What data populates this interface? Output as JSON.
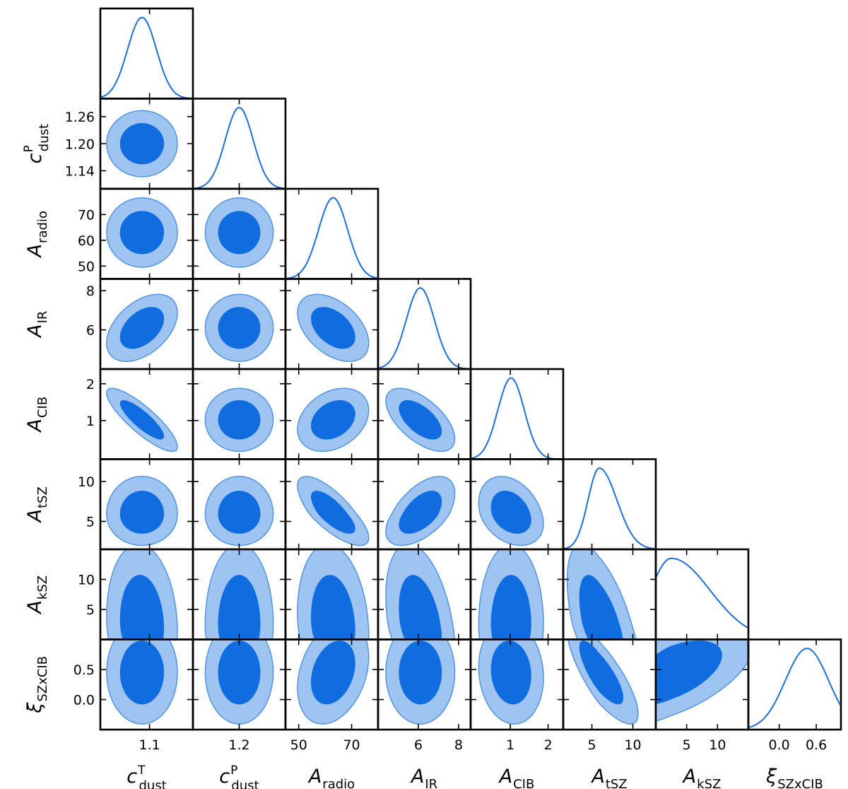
{
  "chart_data": {
    "type": "corner",
    "title": "",
    "colors": {
      "inner": "#0f6de0",
      "outer": "#9fc4f1",
      "outer_edge": "#4a90e0",
      "line": "#1f6fd8"
    },
    "parameters": [
      {
        "id": "c_dust_T",
        "label_main": "c",
        "label_sub": "dust",
        "label_sup": "T",
        "symbol": "",
        "range": [
          1.015,
          1.175
        ],
        "mean": 1.087,
        "sigma": 0.025,
        "skew": 0,
        "ticks": [
          1.1
        ],
        "tick_labels": [
          "1.1"
        ],
        "y_ticks": [],
        "y_tick_labels": []
      },
      {
        "id": "c_dust_P",
        "label_main": "c",
        "label_sub": "dust",
        "label_sup": "P",
        "symbol": "",
        "range": [
          1.1,
          1.3
        ],
        "mean": 1.2,
        "sigma": 0.03,
        "skew": 0,
        "ticks": [
          1.2
        ],
        "tick_labels": [
          "1.2"
        ],
        "y_ticks": [
          1.26,
          1.2,
          1.14
        ],
        "y_tick_labels": [
          "1.26",
          "1.20",
          "1.14"
        ]
      },
      {
        "id": "A_radio",
        "label_main": "A",
        "label_sub": "radio",
        "label_sup": "",
        "symbol": "",
        "range": [
          45,
          80
        ],
        "mean": 63,
        "sigma": 5.5,
        "skew": 0,
        "ticks": [
          50,
          70
        ],
        "tick_labels": [
          "50",
          "70"
        ],
        "y_ticks": [
          70,
          60,
          50
        ],
        "y_tick_labels": [
          "70",
          "60",
          "50"
        ]
      },
      {
        "id": "A_IR",
        "label_main": "A",
        "label_sub": "IR",
        "label_sup": "",
        "symbol": "",
        "range": [
          4.0,
          8.6
        ],
        "mean": 6.1,
        "sigma": 0.7,
        "skew": 0,
        "ticks": [
          6,
          8
        ],
        "tick_labels": [
          "6",
          "8"
        ],
        "y_ticks": [
          8,
          6
        ],
        "y_tick_labels": [
          "8",
          "6"
        ]
      },
      {
        "id": "A_CIB",
        "label_main": "A",
        "label_sub": "CIB",
        "label_sup": "",
        "symbol": "",
        "range": [
          -0.05,
          2.4
        ],
        "mean": 1.02,
        "sigma": 0.35,
        "skew": 0,
        "ticks": [
          1,
          2
        ],
        "tick_labels": [
          "1",
          "2"
        ],
        "y_ticks": [
          2,
          1
        ],
        "y_tick_labels": [
          "2",
          "1"
        ]
      },
      {
        "id": "A_tSZ",
        "label_main": "A",
        "label_sub": "tSZ",
        "label_sup": "",
        "symbol": "",
        "range": [
          1.5,
          12.8
        ],
        "mean": 5.9,
        "sigma": 1.6,
        "skew": 0.35,
        "ticks": [
          5,
          10
        ],
        "tick_labels": [
          "5",
          "10"
        ],
        "y_ticks": [
          10,
          5
        ],
        "y_tick_labels": [
          "10",
          "5"
        ]
      },
      {
        "id": "A_kSZ",
        "label_main": "A",
        "label_sub": "kSZ",
        "label_sup": "",
        "symbol": "",
        "range": [
          0,
          15
        ],
        "mean": 2.5,
        "sigma": 4.2,
        "skew": 0.5,
        "ticks": [
          5,
          10
        ],
        "tick_labels": [
          "5",
          "10"
        ],
        "y_ticks": [
          10,
          5
        ],
        "y_tick_labels": [
          "10",
          "5"
        ]
      },
      {
        "id": "xi_SZxCIB",
        "label_main": "",
        "label_sub": "SZxCIB",
        "label_sup": "",
        "symbol": "ξ",
        "range": [
          -0.5,
          1.0
        ],
        "mean": 0.45,
        "sigma": 0.35,
        "skew": 0,
        "ticks": [
          0.0,
          0.6
        ],
        "tick_labels": [
          "0.0",
          "0.6"
        ],
        "y_ticks": [
          0.5,
          0.0
        ],
        "y_tick_labels": [
          "0.5",
          "0.0"
        ]
      }
    ],
    "correlations": [
      [
        1.0,
        0.0,
        0.0,
        0.45,
        -0.85,
        0.0,
        -0.1,
        0.0
      ],
      [
        0.0,
        1.0,
        0.0,
        0.0,
        0.0,
        0.0,
        0.0,
        0.0
      ],
      [
        0.0,
        0.0,
        1.0,
        -0.45,
        0.3,
        -0.75,
        -0.15,
        0.3
      ],
      [
        0.45,
        0.0,
        -0.45,
        1.0,
        -0.6,
        0.55,
        -0.35,
        0.0
      ],
      [
        -0.85,
        0.0,
        0.3,
        -0.6,
        1.0,
        -0.3,
        0.0,
        -0.1
      ],
      [
        0.0,
        0.0,
        -0.75,
        0.55,
        -0.3,
        1.0,
        -0.55,
        -0.8
      ],
      [
        -0.1,
        0.0,
        -0.15,
        -0.35,
        0.0,
        -0.55,
        1.0,
        0.55
      ],
      [
        0.0,
        0.0,
        0.3,
        0.0,
        -0.1,
        -0.8,
        0.55,
        1.0
      ]
    ],
    "contour_levels": [
      "68%",
      "95%"
    ],
    "legend": "none"
  }
}
